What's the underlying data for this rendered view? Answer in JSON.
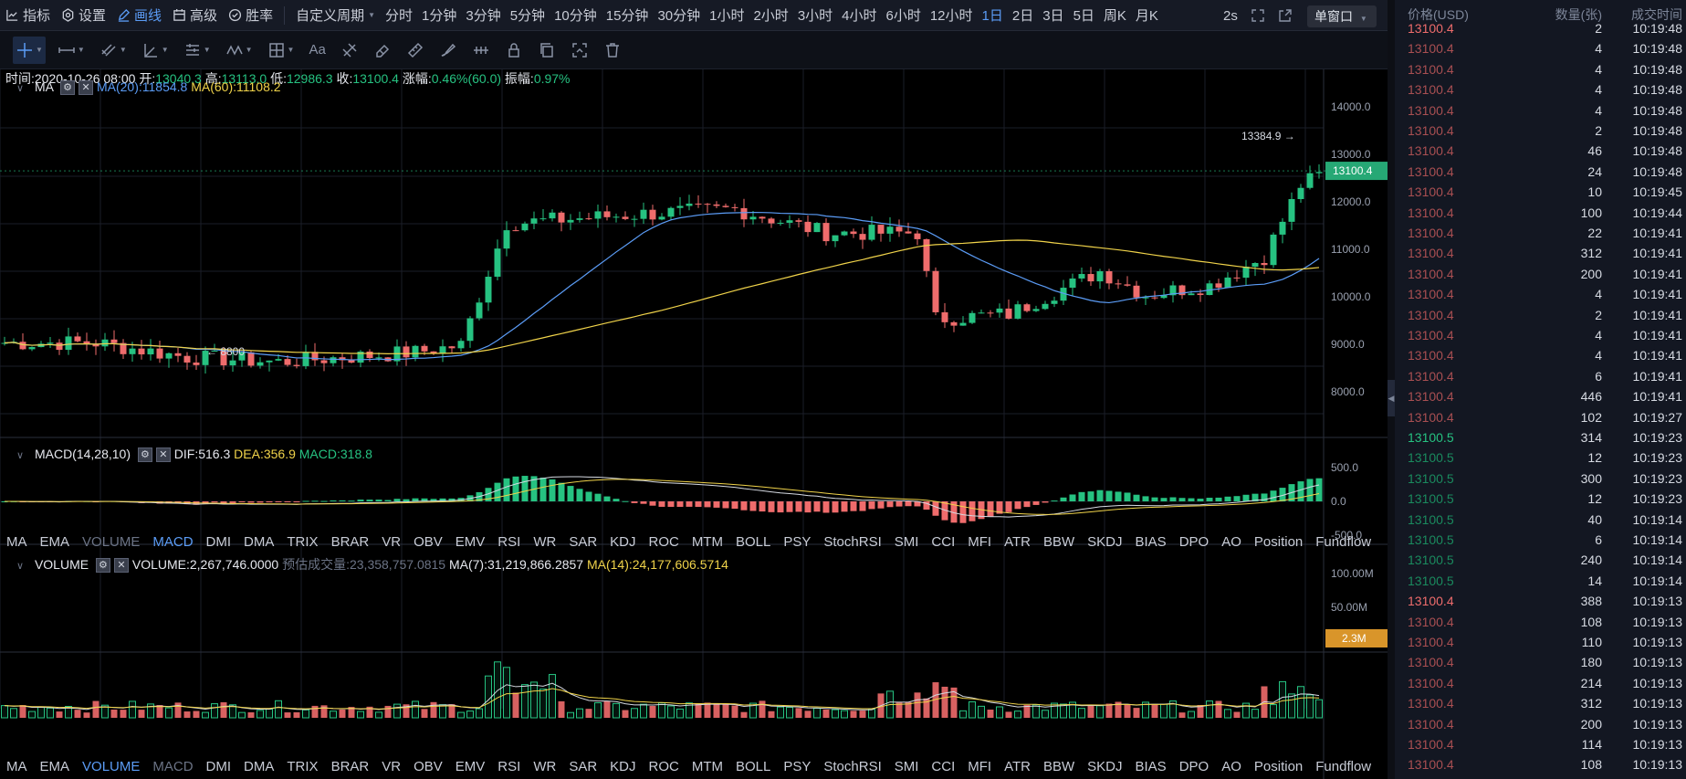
{
  "toolbar": {
    "indicator": "指标",
    "settings": "设置",
    "draw": "画线",
    "advanced": "高级",
    "win_rate": "胜率",
    "custom_period": "自定义周期",
    "periods": [
      "分时",
      "1分钟",
      "3分钟",
      "5分钟",
      "10分钟",
      "15分钟",
      "30分钟",
      "1小时",
      "2小时",
      "3小时",
      "4小时",
      "6小时",
      "12小时",
      "1日",
      "2日",
      "3日",
      "5日",
      "周K",
      "月K"
    ],
    "active_period": "1日",
    "interval": "2s",
    "window_mode": "单窗口"
  },
  "drawbar": {
    "text_tool": "Aa"
  },
  "info": {
    "time_label": "时间:",
    "time": "2020-10-26 08:00",
    "open_label": "开:",
    "open": "13040.3",
    "high_label": "高:",
    "high": "13113.0",
    "low_label": "低:",
    "low": "12986.3",
    "close_label": "收:",
    "close": "13100.4",
    "change_label": "涨幅:",
    "change": "0.46%(60.0)",
    "amp_label": "振幅:",
    "amp": "0.97%"
  },
  "ma": {
    "name": "MA",
    "ma20": "MA(20):11854.8",
    "ma60": "MA(60):11108.2"
  },
  "macd": {
    "name": "MACD(14,28,10)",
    "dif": "DIF:516.3",
    "dea": "DEA:356.9",
    "macd": "MACD:318.8"
  },
  "volume": {
    "name": "VOLUME",
    "value": "VOLUME:2,267,746.0000",
    "est": "预估成交量:23,358,757.0815",
    "ma7": "MA(7):31,219,866.2857",
    "ma14": "MA(14):24,177,606.5714"
  },
  "price_axis": [
    "14000.0",
    "13000.0",
    "12000.0",
    "11000.0",
    "10000.0",
    "9000.0",
    "8000.0"
  ],
  "current_price": "13100.4",
  "max_label": "13384.9 →",
  "min_label": "← 8800",
  "macd_axis": [
    "500.0",
    "0.0",
    "-500.0"
  ],
  "vol_axis": [
    "100.00M",
    "50.00M"
  ],
  "vol_current": "2.3M",
  "indicator_tabs": [
    "MA",
    "EMA",
    "VOLUME",
    "MACD",
    "DMI",
    "DMA",
    "TRIX",
    "BRAR",
    "VR",
    "OBV",
    "EMV",
    "RSI",
    "WR",
    "SAR",
    "KDJ",
    "ROC",
    "MTM",
    "BOLL",
    "PSY",
    "StochRSI",
    "SMI",
    "CCI",
    "MFI",
    "ATR",
    "BBW",
    "SKDJ",
    "BIAS",
    "DPO",
    "AO",
    "Position",
    "Fundflow"
  ],
  "colors": {
    "up": "#26c281",
    "down": "#ef6c6c",
    "ma20": "#5b9cf6",
    "ma60": "#f0d34a",
    "bg": "#000000",
    "accent": "#5b9cf6"
  },
  "trades_header": {
    "price": "价格(USD)",
    "qty": "数量(张)",
    "time": "成交时间"
  },
  "trades": [
    {
      "price": "13100.4",
      "qty": "2",
      "time": "10:19:48",
      "side": "sell",
      "hl": true
    },
    {
      "price": "13100.4",
      "qty": "4",
      "time": "10:19:48",
      "side": "sell"
    },
    {
      "price": "13100.4",
      "qty": "4",
      "time": "10:19:48",
      "side": "sell"
    },
    {
      "price": "13100.4",
      "qty": "4",
      "time": "10:19:48",
      "side": "sell"
    },
    {
      "price": "13100.4",
      "qty": "4",
      "time": "10:19:48",
      "side": "sell"
    },
    {
      "price": "13100.4",
      "qty": "2",
      "time": "10:19:48",
      "side": "sell"
    },
    {
      "price": "13100.4",
      "qty": "46",
      "time": "10:19:48",
      "side": "sell"
    },
    {
      "price": "13100.4",
      "qty": "24",
      "time": "10:19:48",
      "side": "sell"
    },
    {
      "price": "13100.4",
      "qty": "10",
      "time": "10:19:45",
      "side": "sell"
    },
    {
      "price": "13100.4",
      "qty": "100",
      "time": "10:19:44",
      "side": "sell"
    },
    {
      "price": "13100.4",
      "qty": "22",
      "time": "10:19:41",
      "side": "sell"
    },
    {
      "price": "13100.4",
      "qty": "312",
      "time": "10:19:41",
      "side": "sell"
    },
    {
      "price": "13100.4",
      "qty": "200",
      "time": "10:19:41",
      "side": "sell"
    },
    {
      "price": "13100.4",
      "qty": "4",
      "time": "10:19:41",
      "side": "sell"
    },
    {
      "price": "13100.4",
      "qty": "2",
      "time": "10:19:41",
      "side": "sell"
    },
    {
      "price": "13100.4",
      "qty": "4",
      "time": "10:19:41",
      "side": "sell"
    },
    {
      "price": "13100.4",
      "qty": "4",
      "time": "10:19:41",
      "side": "sell"
    },
    {
      "price": "13100.4",
      "qty": "6",
      "time": "10:19:41",
      "side": "sell"
    },
    {
      "price": "13100.4",
      "qty": "446",
      "time": "10:19:41",
      "side": "sell"
    },
    {
      "price": "13100.4",
      "qty": "102",
      "time": "10:19:27",
      "side": "sell"
    },
    {
      "price": "13100.5",
      "qty": "314",
      "time": "10:19:23",
      "side": "buy",
      "hl": true
    },
    {
      "price": "13100.5",
      "qty": "12",
      "time": "10:19:23",
      "side": "buy"
    },
    {
      "price": "13100.5",
      "qty": "300",
      "time": "10:19:23",
      "side": "buy"
    },
    {
      "price": "13100.5",
      "qty": "12",
      "time": "10:19:23",
      "side": "buy"
    },
    {
      "price": "13100.5",
      "qty": "40",
      "time": "10:19:14",
      "side": "buy"
    },
    {
      "price": "13100.5",
      "qty": "6",
      "time": "10:19:14",
      "side": "buy"
    },
    {
      "price": "13100.5",
      "qty": "240",
      "time": "10:19:14",
      "side": "buy"
    },
    {
      "price": "13100.5",
      "qty": "14",
      "time": "10:19:14",
      "side": "buy"
    },
    {
      "price": "13100.4",
      "qty": "388",
      "time": "10:19:13",
      "side": "sell",
      "hl": true
    },
    {
      "price": "13100.4",
      "qty": "108",
      "time": "10:19:13",
      "side": "sell"
    },
    {
      "price": "13100.4",
      "qty": "110",
      "time": "10:19:13",
      "side": "sell"
    },
    {
      "price": "13100.4",
      "qty": "180",
      "time": "10:19:13",
      "side": "sell"
    },
    {
      "price": "13100.4",
      "qty": "214",
      "time": "10:19:13",
      "side": "sell"
    },
    {
      "price": "13100.4",
      "qty": "312",
      "time": "10:19:13",
      "side": "sell"
    },
    {
      "price": "13100.4",
      "qty": "200",
      "time": "10:19:13",
      "side": "sell"
    },
    {
      "price": "13100.4",
      "qty": "114",
      "time": "10:19:13",
      "side": "sell"
    },
    {
      "price": "13100.4",
      "qty": "108",
      "time": "10:19:13",
      "side": "sell"
    }
  ]
}
